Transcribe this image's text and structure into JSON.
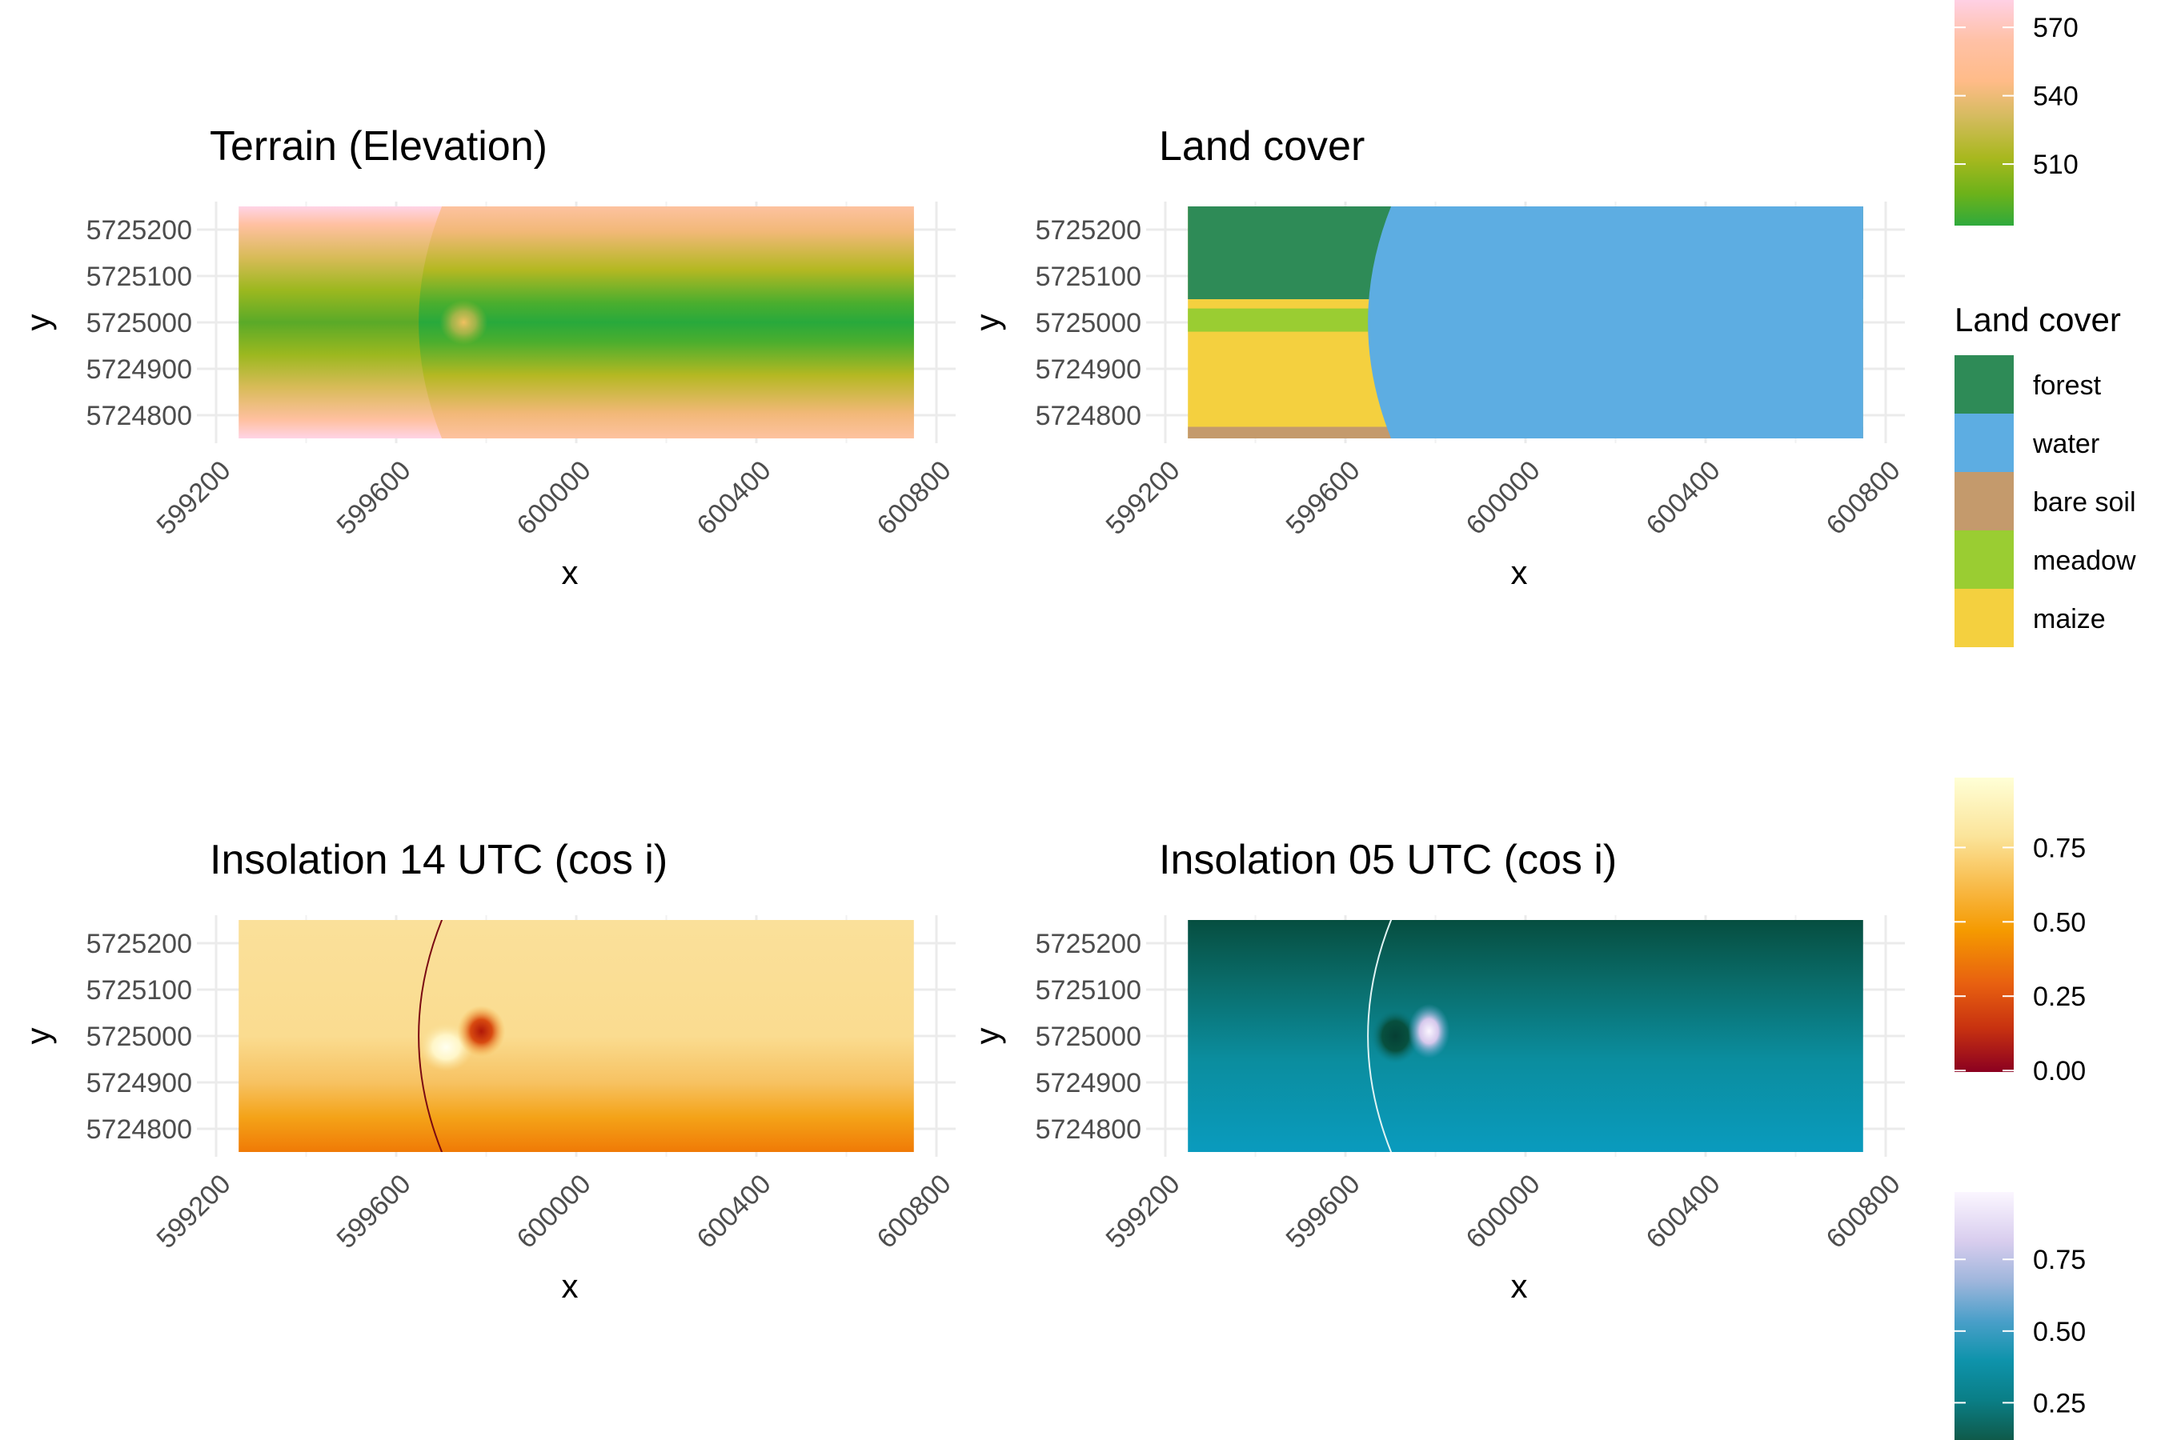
{
  "figure": {
    "type": "raster-map-panels"
  },
  "chart_data": [
    {
      "type": "heatmap",
      "title": "Terrain (Elevation)",
      "xlabel": "x",
      "ylabel": "y",
      "xlim": [
        599200,
        600800
      ],
      "ylim": [
        5724750,
        5725250
      ],
      "xticks": [
        599200,
        599600,
        600000,
        600400,
        600800
      ],
      "yticks": [
        5725200,
        5725100,
        5725000,
        5724900,
        5724800
      ],
      "extent": {
        "x": [
          599250,
          600750
        ],
        "y": [
          5724750,
          5725250
        ]
      },
      "legend": {
        "title": "",
        "ticks": [
          570,
          540,
          510
        ],
        "palette": [
          "#ffd0e4",
          "#ffc1a6",
          "#ffbb88",
          "#d4bb5e",
          "#a8b81e",
          "#6cb21a",
          "#2faa3c"
        ]
      }
    },
    {
      "type": "heatmap",
      "title": "Land cover",
      "xlabel": "x",
      "ylabel": "y",
      "xlim": [
        599200,
        600800
      ],
      "ylim": [
        5724750,
        5725250
      ],
      "xticks": [
        599200,
        599600,
        600000,
        600400,
        600800
      ],
      "yticks": [
        5725200,
        5725100,
        5725000,
        5724900,
        5724800
      ],
      "extent": {
        "x": [
          599250,
          600750
        ],
        "y": [
          5724750,
          5725250
        ]
      },
      "legend": {
        "title": "Land cover",
        "categories": [
          {
            "label": "forest",
            "color": "#2e8b57"
          },
          {
            "label": "water",
            "color": "#5dade2"
          },
          {
            "label": "bare soil",
            "color": "#c49a6c"
          },
          {
            "label": "meadow",
            "color": "#9acd32"
          },
          {
            "label": "maize",
            "color": "#f4d03f"
          }
        ]
      }
    },
    {
      "type": "heatmap",
      "title": "Insolation 14 UTC (cos i)",
      "xlabel": "x",
      "ylabel": "y",
      "xlim": [
        599200,
        600800
      ],
      "ylim": [
        5724750,
        5725250
      ],
      "xticks": [
        599200,
        599600,
        600000,
        600400,
        600800
      ],
      "yticks": [
        5725200,
        5725100,
        5725000,
        5724900,
        5724800
      ],
      "extent": {
        "x": [
          599250,
          600750
        ],
        "y": [
          5724750,
          5725250
        ]
      },
      "legend": {
        "title": "",
        "ticks": [
          "0.75",
          "0.50",
          "0.25",
          "0.00"
        ],
        "palette": [
          "#ffffd6",
          "#fbe49a",
          "#f8b844",
          "#f59a00",
          "#e86010",
          "#c83210",
          "#8b0020"
        ]
      }
    },
    {
      "type": "heatmap",
      "title": "Insolation 05 UTC (cos i)",
      "xlabel": "x",
      "ylabel": "y",
      "xlim": [
        599200,
        600800
      ],
      "ylim": [
        5724750,
        5725250
      ],
      "xticks": [
        599200,
        599600,
        600000,
        600400,
        600800
      ],
      "yticks": [
        5725200,
        5725100,
        5725000,
        5724900,
        5724800
      ],
      "extent": {
        "x": [
          599250,
          600750
        ],
        "y": [
          5724750,
          5725250
        ]
      },
      "legend": {
        "title": "",
        "ticks": [
          "0.75",
          "0.50",
          "0.25"
        ],
        "palette": [
          "#fbf6ff",
          "#d8cdee",
          "#9fb6dc",
          "#4a9fc9",
          "#0e93ab",
          "#0a7e86",
          "#0f5a4a"
        ]
      }
    }
  ]
}
